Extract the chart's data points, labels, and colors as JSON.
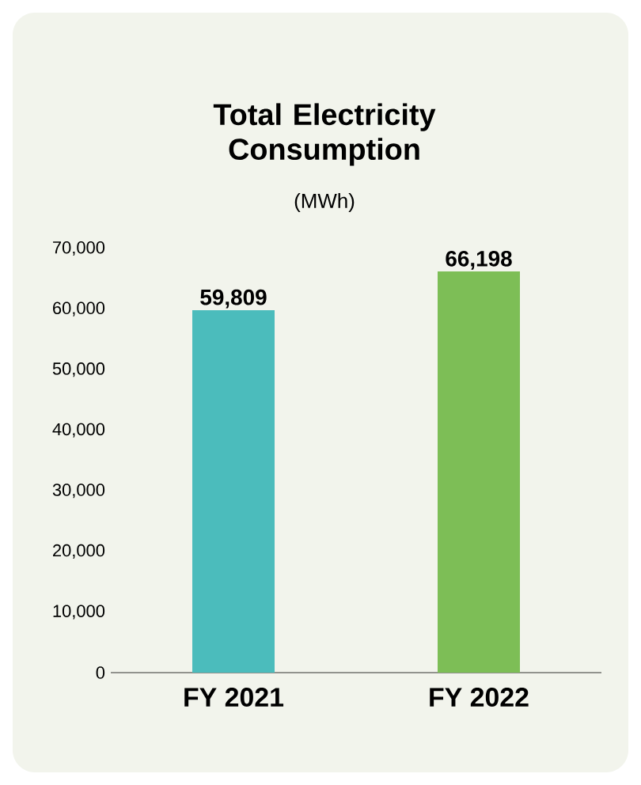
{
  "chart_data": {
    "type": "bar",
    "title": "Total Electricity Consumption",
    "subtitle": "(MWh)",
    "categories": [
      "FY 2021",
      "FY 2022"
    ],
    "values": [
      59809,
      66198
    ],
    "colors": [
      "#4bbcbc",
      "#7dbe56"
    ],
    "value_labels": [
      "59,809",
      "66,198"
    ],
    "ylim": [
      0,
      70000
    ],
    "yticks": [
      {
        "value": 0,
        "label": "0"
      },
      {
        "value": 10000,
        "label": "10,000"
      },
      {
        "value": 20000,
        "label": "20,000"
      },
      {
        "value": 30000,
        "label": "30,000"
      },
      {
        "value": 40000,
        "label": "40,000"
      },
      {
        "value": 50000,
        "label": "50,000"
      },
      {
        "value": 60000,
        "label": "60,000"
      },
      {
        "value": 70000,
        "label": "70,000"
      }
    ]
  }
}
